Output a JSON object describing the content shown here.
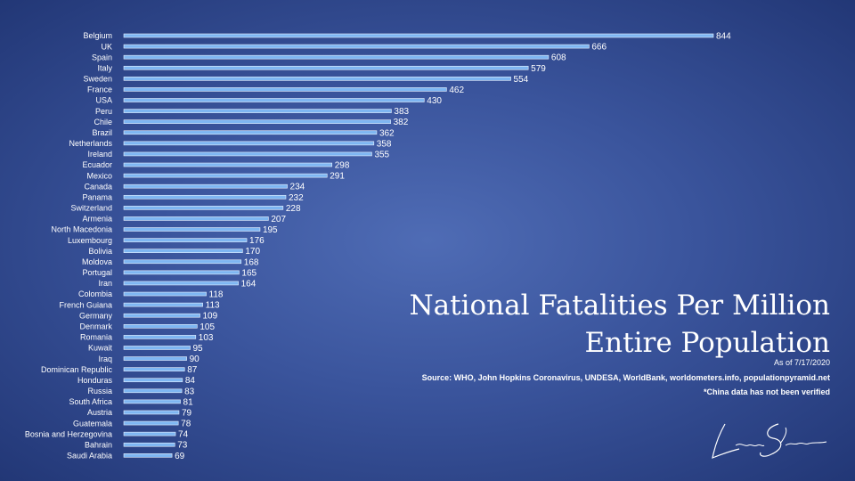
{
  "chart_data": {
    "type": "bar",
    "orientation": "horizontal",
    "title_lines": [
      "National Fatalities Per Million",
      "Entire Population"
    ],
    "xlabel": "",
    "ylabel": "",
    "xlim": [
      0,
      844
    ],
    "grid": false,
    "bar_color": "#7eb6f2",
    "categories": [
      "Belgium",
      "UK",
      "Spain",
      "Italy",
      "Sweden",
      "France",
      "USA",
      "Peru",
      "Chile",
      "Brazil",
      "Netherlands",
      "Ireland",
      "Ecuador",
      "Mexico",
      "Canada",
      "Panama",
      "Switzerland",
      "Armenia",
      "North Macedonia",
      "Luxembourg",
      "Bolivia",
      "Moldova",
      "Portugal",
      "Iran",
      "Colombia",
      "French Guiana",
      "Germany",
      "Denmark",
      "Romania",
      "Kuwait",
      "Iraq",
      "Dominican Republic",
      "Honduras",
      "Russia",
      "South Africa",
      "Austria",
      "Guatemala",
      "Bosnia and Herzegovina",
      "Bahrain",
      "Saudi Arabia"
    ],
    "values": [
      844,
      666,
      608,
      579,
      554,
      462,
      430,
      383,
      382,
      362,
      358,
      355,
      298,
      291,
      234,
      232,
      228,
      207,
      195,
      176,
      170,
      168,
      165,
      164,
      118,
      113,
      109,
      105,
      103,
      95,
      90,
      87,
      84,
      83,
      81,
      79,
      78,
      74,
      73,
      69
    ]
  },
  "as_of": "As of 7/17/2020",
  "source": "Source: WHO, John Hopkins Coronavirus, UNDESA, WorldBank, worldometers.info, populationpyramid.net",
  "note": "*China data has not been verified",
  "signature_icon": "handwritten-signature-icon"
}
